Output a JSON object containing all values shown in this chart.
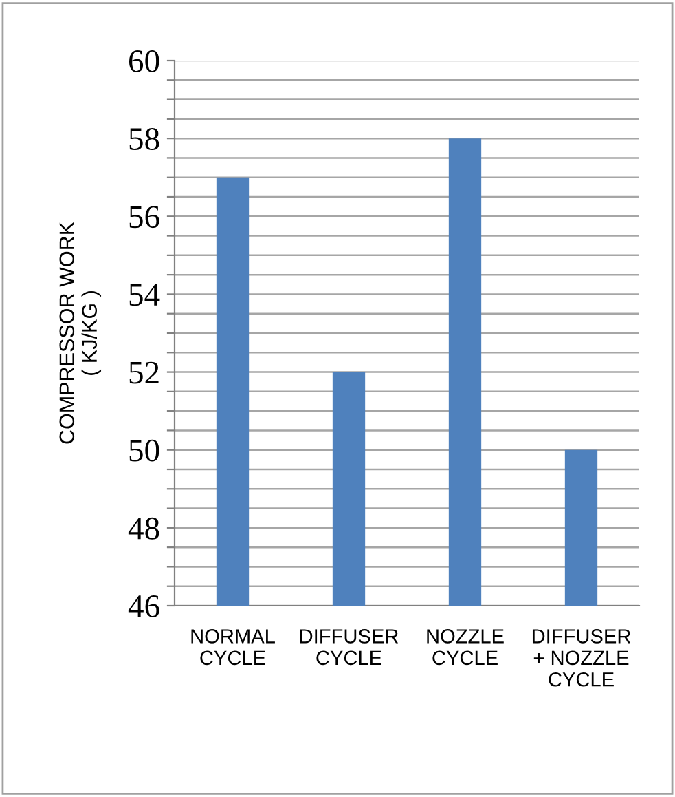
{
  "chart_data": {
    "type": "bar",
    "ylabel": "COMPRESSOR WORK\n( KJ/KG )",
    "categories": [
      "NORMAL\nCYCLE",
      "DIFFUSER\nCYCLE",
      "NOZZLE\nCYCLE",
      "DIFFUSER\n+ NOZZLE\nCYCLE"
    ],
    "values": [
      57,
      52,
      58,
      50
    ],
    "color": "#4f81bd",
    "ylim": [
      46,
      60
    ],
    "yticks": [
      46,
      {
        "value": 46.5,
        "label": null
      },
      {
        "value": 47,
        "label": null
      },
      {
        "value": 47.5,
        "label": null
      },
      48,
      {
        "value": 48.5,
        "label": null
      },
      {
        "value": 49,
        "label": null
      },
      {
        "value": 49.5,
        "label": null
      },
      50,
      {
        "value": 50.5,
        "label": null
      },
      {
        "value": 51,
        "label": null
      },
      {
        "value": 51.5,
        "label": null
      },
      52,
      {
        "value": 52.5,
        "label": null
      },
      {
        "value": 53,
        "label": null
      },
      {
        "value": 53.5,
        "label": null
      },
      54,
      {
        "value": 54.5,
        "label": null
      },
      {
        "value": 55,
        "label": null
      },
      {
        "value": 55.5,
        "label": null
      },
      56,
      {
        "value": 56.5,
        "label": null
      },
      {
        "value": 57,
        "label": null
      },
      {
        "value": 57.5,
        "label": null
      },
      58,
      {
        "value": 58.5,
        "label": null
      },
      {
        "value": 59,
        "label": null
      },
      {
        "value": 59.5,
        "label": null
      },
      60
    ],
    "grid": "y",
    "legend": false
  }
}
